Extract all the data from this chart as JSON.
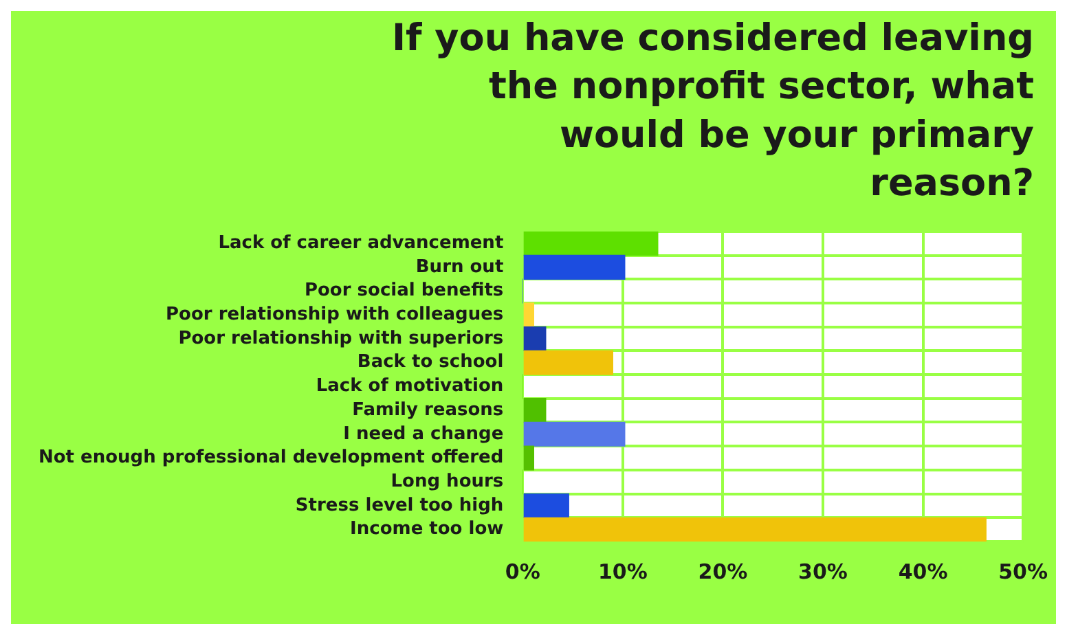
{
  "chart_data": {
    "type": "bar",
    "orientation": "horizontal",
    "title": "If you have considered leaving the nonprofit sector, what would be your primary reason?",
    "categories": [
      "Lack of career advancement",
      "Burn out",
      "Poor social benefits",
      "Poor relationship with colleagues",
      "Poor relationship with superiors",
      "Back to school",
      "Lack of motivation",
      "Family reasons",
      "I need a change",
      "Not enough professional development offered",
      "Long hours",
      "Stress level too high",
      "Income too low"
    ],
    "values": [
      13.5,
      10.2,
      0,
      1.1,
      2.3,
      9.0,
      0,
      2.3,
      10.2,
      1.1,
      0,
      4.6,
      46.3
    ],
    "colors": [
      "#5ee000",
      "#1c4de0",
      "#1c4de0",
      "#ffd633",
      "#1a3db0",
      "#f0c30a",
      "#5ee000",
      "#50c000",
      "#5577e8",
      "#55c000",
      "#5ee000",
      "#1c4de0",
      "#f0c30a"
    ],
    "xlim": [
      0,
      50
    ],
    "xticks": [
      {
        "value": 0,
        "label": "0%"
      },
      {
        "value": 10,
        "label": "10%"
      },
      {
        "value": 20,
        "label": "20%"
      },
      {
        "value": 30,
        "label": "30%"
      },
      {
        "value": 40,
        "label": "40%"
      },
      {
        "value": 50,
        "label": "50%"
      }
    ],
    "grid": true,
    "legend": false
  }
}
